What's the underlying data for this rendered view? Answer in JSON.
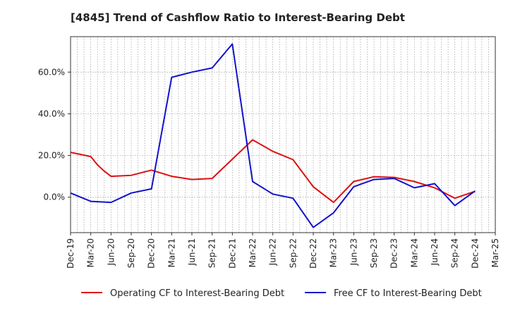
{
  "chart_data": {
    "type": "line",
    "title": "[4845]  Trend of Cashflow Ratio to Interest-Bearing Debt",
    "x": [
      "Dec-19",
      "Mar-20",
      "Jun-20",
      "Sep-20",
      "Dec-20",
      "Mar-21",
      "Jun-21",
      "Sep-21",
      "Dec-21",
      "Mar-22",
      "Jun-22",
      "Sep-22",
      "Dec-22",
      "Mar-23",
      "Jun-23",
      "Sep-23",
      "Dec-23",
      "Mar-24",
      "Jun-24",
      "Sep-24",
      "Dec-24",
      "Mar-25"
    ],
    "y_ticks": [
      {
        "value": 0,
        "label": "0.0%"
      },
      {
        "value": 20,
        "label": "20.0%"
      },
      {
        "value": 40,
        "label": "40.0%"
      },
      {
        "value": 60,
        "label": "60.0%"
      }
    ],
    "ylim": [
      -17,
      77
    ],
    "xlim_months": [
      0,
      63
    ],
    "grid": true,
    "legend_position": "bottom",
    "series": [
      {
        "name": "Operating CF to Interest-Bearing Debt",
        "color": "#dd1111",
        "points": [
          {
            "x": "Dec-19",
            "y": 21.5
          },
          {
            "x": "Mar-20",
            "y": 19.5
          },
          {
            "x": "Apr-20",
            "y": 15.5
          },
          {
            "x": "May-20",
            "y": 12.5
          },
          {
            "x": "Jun-20",
            "y": 10.0
          },
          {
            "x": "Sep-20",
            "y": 10.5
          },
          {
            "x": "Dec-20",
            "y": 13.0
          },
          {
            "x": "Mar-21",
            "y": 10.0
          },
          {
            "x": "Jun-21",
            "y": 8.5
          },
          {
            "x": "Sep-21",
            "y": 9.0
          },
          {
            "x": "Mar-22",
            "y": 27.5
          },
          {
            "x": "Jun-22",
            "y": 22.0
          },
          {
            "x": "Sep-22",
            "y": 18.0
          },
          {
            "x": "Dec-22",
            "y": 5.0
          },
          {
            "x": "Mar-23",
            "y": -2.5
          },
          {
            "x": "Jun-23",
            "y": 7.5
          },
          {
            "x": "Sep-23",
            "y": 9.8
          },
          {
            "x": "Dec-23",
            "y": 9.5
          },
          {
            "x": "Mar-24",
            "y": 7.5
          },
          {
            "x": "Jun-24",
            "y": 4.5
          },
          {
            "x": "Sep-24",
            "y": -0.5
          },
          {
            "x": "Dec-24",
            "y": 2.8
          }
        ]
      },
      {
        "name": "Free CF to Interest-Bearing Debt",
        "color": "#1111cc",
        "points": [
          {
            "x": "Dec-19",
            "y": 2.0
          },
          {
            "x": "Mar-20",
            "y": -2.0
          },
          {
            "x": "Jun-20",
            "y": -2.5
          },
          {
            "x": "Sep-20",
            "y": 2.0
          },
          {
            "x": "Dec-20",
            "y": 4.0
          },
          {
            "x": "Mar-21",
            "y": 57.5
          },
          {
            "x": "Jun-21",
            "y": 60.0
          },
          {
            "x": "Sep-21",
            "y": 62.0
          },
          {
            "x": "Dec-21",
            "y": 73.5
          },
          {
            "x": "Mar-22",
            "y": 7.5
          },
          {
            "x": "Jun-22",
            "y": 1.5
          },
          {
            "x": "Sep-22",
            "y": -0.5
          },
          {
            "x": "Dec-22",
            "y": -14.5
          },
          {
            "x": "Mar-23",
            "y": -7.5
          },
          {
            "x": "Jun-23",
            "y": 5.0
          },
          {
            "x": "Sep-23",
            "y": 8.5
          },
          {
            "x": "Dec-23",
            "y": 9.0
          },
          {
            "x": "Mar-24",
            "y": 4.5
          },
          {
            "x": "Jun-24",
            "y": 6.5
          },
          {
            "x": "Sep-24",
            "y": -4.0
          },
          {
            "x": "Dec-24",
            "y": 3.0
          }
        ]
      }
    ]
  }
}
